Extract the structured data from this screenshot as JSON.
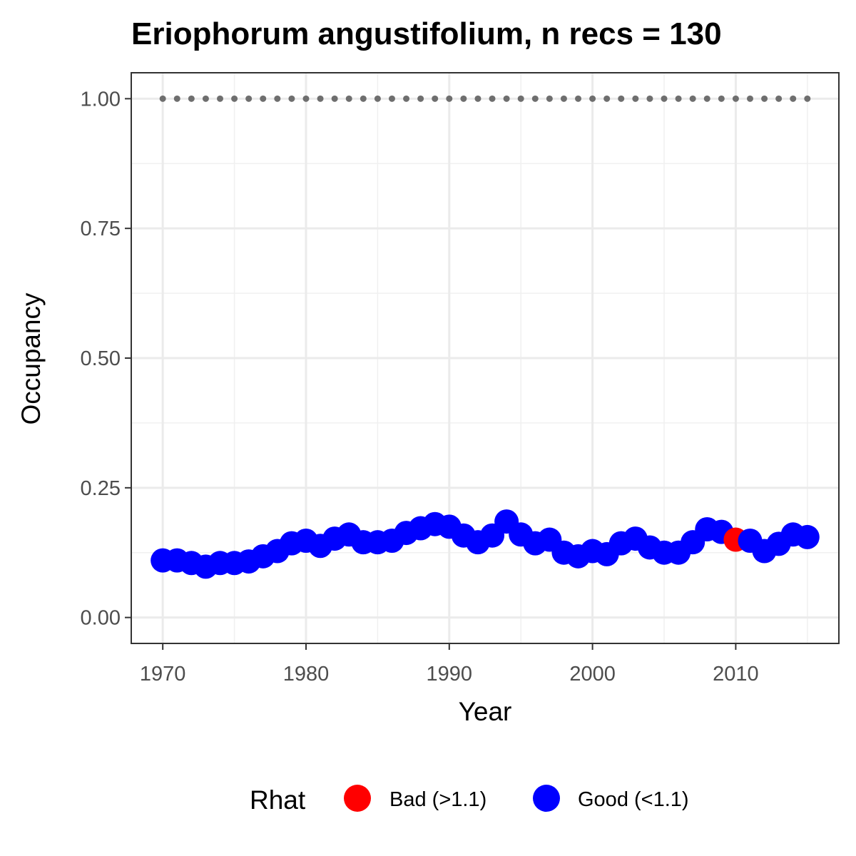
{
  "chart_data": {
    "type": "line",
    "title": "Eriophorum angustifolium, n recs = 130",
    "xlabel": "Year",
    "ylabel": "Occupancy",
    "xlim": [
      1967.8,
      2017.2
    ],
    "ylim": [
      -0.05,
      1.05
    ],
    "x_ticks": [
      1970,
      1980,
      1990,
      2000,
      2010
    ],
    "x_tick_labels": [
      "1970",
      "1980",
      "1990",
      "2000",
      "2010"
    ],
    "y_ticks": [
      0,
      0.25,
      0.5,
      0.75,
      1.0
    ],
    "y_tick_labels": [
      "0.00",
      "0.25",
      "0.50",
      "0.75",
      "1.00"
    ],
    "grid": true,
    "reference_line": {
      "style": "dotted",
      "color": "#6e6e6e",
      "x": [
        1970,
        1971,
        1972,
        1973,
        1974,
        1975,
        1976,
        1977,
        1978,
        1979,
        1980,
        1981,
        1982,
        1983,
        1984,
        1985,
        1986,
        1987,
        1988,
        1989,
        1990,
        1991,
        1992,
        1993,
        1994,
        1995,
        1996,
        1997,
        1998,
        1999,
        2000,
        2001,
        2002,
        2003,
        2004,
        2005,
        2006,
        2007,
        2008,
        2009,
        2010,
        2011,
        2012,
        2013,
        2014,
        2015
      ],
      "values": [
        1,
        1,
        1,
        1,
        1,
        1,
        1,
        1,
        1,
        1,
        1,
        1,
        1,
        1,
        1,
        1,
        1,
        1,
        1,
        1,
        1,
        1,
        1,
        1,
        1,
        1,
        1,
        1,
        1,
        1,
        1,
        1,
        1,
        1,
        1,
        1,
        1,
        1,
        1,
        1,
        1,
        1,
        1,
        1,
        1,
        1
      ]
    },
    "series": [
      {
        "x": [
          1970,
          1971,
          1972,
          1973,
          1974,
          1975,
          1976,
          1977,
          1978,
          1979,
          1980,
          1981,
          1982,
          1983,
          1984,
          1985,
          1986,
          1987,
          1988,
          1989,
          1990,
          1991,
          1992,
          1993,
          1994,
          1995,
          1996,
          1997,
          1998,
          1999,
          2000,
          2001,
          2002,
          2003,
          2004,
          2005,
          2006,
          2007,
          2008,
          2009,
          2010,
          2011,
          2012,
          2013,
          2014,
          2015
        ],
        "values": [
          0.11,
          0.11,
          0.105,
          0.098,
          0.105,
          0.105,
          0.108,
          0.118,
          0.128,
          0.143,
          0.148,
          0.138,
          0.152,
          0.16,
          0.145,
          0.145,
          0.148,
          0.163,
          0.172,
          0.18,
          0.175,
          0.158,
          0.145,
          0.158,
          0.185,
          0.16,
          0.143,
          0.15,
          0.125,
          0.118,
          0.128,
          0.122,
          0.143,
          0.152,
          0.135,
          0.125,
          0.125,
          0.145,
          0.17,
          0.165,
          0.15,
          0.148,
          0.128,
          0.142,
          0.16,
          0.155
        ],
        "rhat": [
          "Good",
          "Good",
          "Good",
          "Good",
          "Good",
          "Good",
          "Good",
          "Good",
          "Good",
          "Good",
          "Good",
          "Good",
          "Good",
          "Good",
          "Good",
          "Good",
          "Good",
          "Good",
          "Good",
          "Good",
          "Good",
          "Good",
          "Good",
          "Good",
          "Good",
          "Good",
          "Good",
          "Good",
          "Good",
          "Good",
          "Good",
          "Good",
          "Good",
          "Good",
          "Good",
          "Good",
          "Good",
          "Good",
          "Good",
          "Good",
          "Bad",
          "Good",
          "Good",
          "Good",
          "Good",
          "Good"
        ]
      }
    ],
    "legend": {
      "title": "Rhat",
      "placement": "bottom",
      "items": [
        {
          "key": "Bad",
          "label": "Bad (>1.1)",
          "color": "#ff0000"
        },
        {
          "key": "Good",
          "label": "Good (<1.1)",
          "color": "#0000ff"
        }
      ]
    }
  }
}
